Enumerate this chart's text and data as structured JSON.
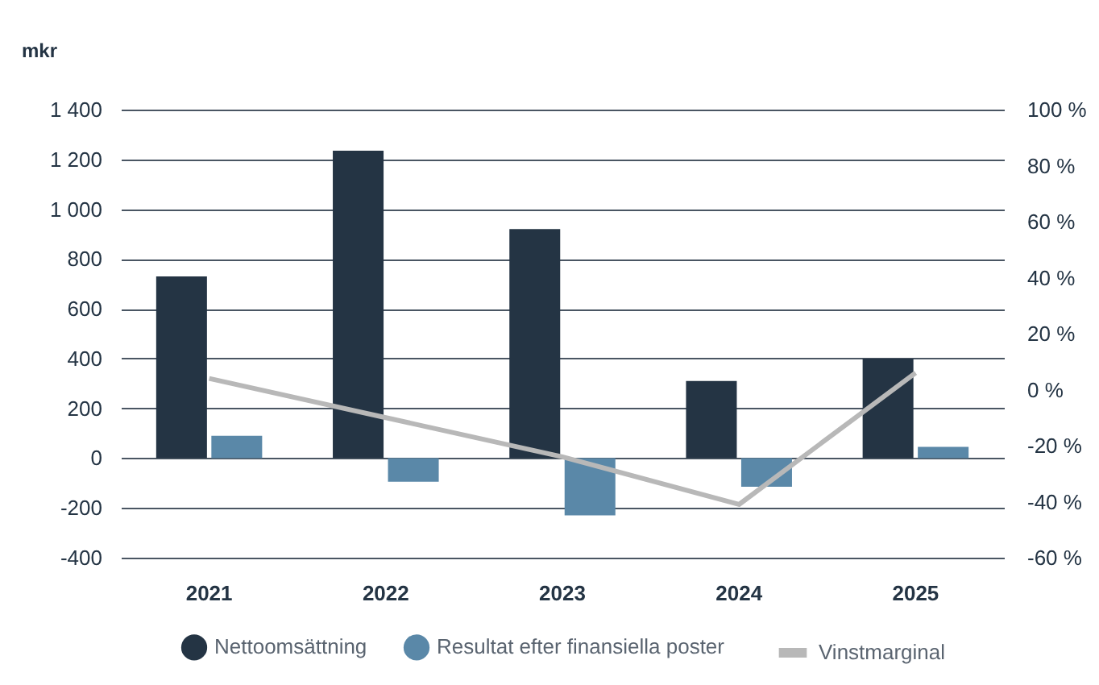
{
  "chart_data": {
    "type": "bar",
    "ylabel": "mkr",
    "categories": [
      "2021",
      "2022",
      "2023",
      "2024",
      "2025"
    ],
    "series": [
      {
        "name": "Nettoomsättning",
        "color": "#243444",
        "values": [
          730,
          1235,
          920,
          310,
          400
        ]
      },
      {
        "name": "Resultat efter finansiella poster",
        "color": "#5a88a8",
        "values": [
          90,
          -95,
          -230,
          -115,
          45
        ]
      },
      {
        "name": "Vinstmarginal",
        "type": "line",
        "axis": "y2",
        "color": "#b8b8b8",
        "values": [
          4,
          -10,
          -24,
          -41,
          6
        ]
      }
    ],
    "ylim": [
      -400,
      1400
    ],
    "yticks": [
      -400,
      -200,
      0,
      200,
      400,
      600,
      800,
      {
        "value": 1000,
        "label": "1 000"
      },
      {
        "value": 1200,
        "label": "1 200"
      },
      {
        "value": 1400,
        "label": "1 400"
      }
    ],
    "y2lim": [
      -60,
      100
    ],
    "y2ticks": [
      {
        "value": -60,
        "label": "-60 %"
      },
      {
        "value": -40,
        "label": "-40 %"
      },
      {
        "value": -20,
        "label": "-20 %"
      },
      {
        "value": 0,
        "label": "0 %"
      },
      {
        "value": 20,
        "label": "20 %"
      },
      {
        "value": 40,
        "label": "40 %"
      },
      {
        "value": 60,
        "label": "60 %"
      },
      {
        "value": 80,
        "label": "80 %"
      },
      {
        "value": 100,
        "label": "100 %"
      }
    ],
    "grid": "y",
    "legend": "bottom"
  }
}
